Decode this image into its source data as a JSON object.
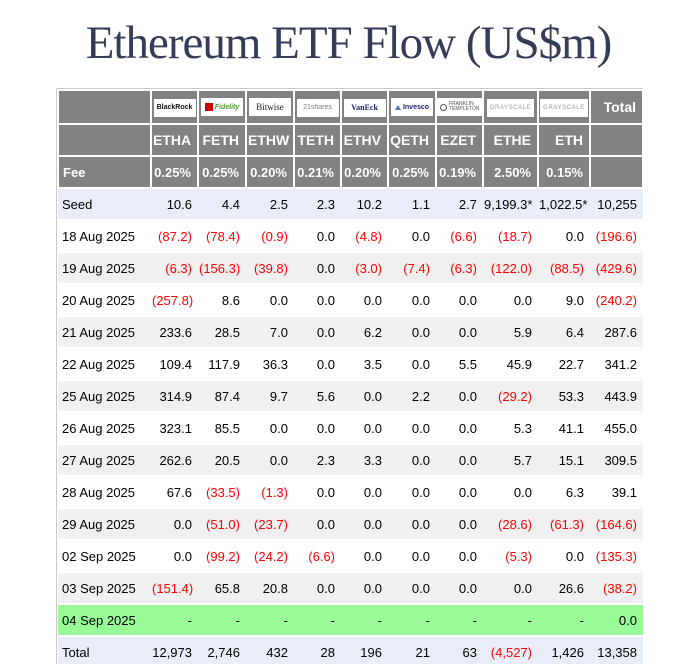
{
  "title": "Ethereum ETF Flow (US$m)",
  "colors": {
    "title_text": "#343c58",
    "header_bg": "#828282",
    "header_text": "#ffffff",
    "seed_bg": "#e8edf8",
    "total_bg": "#e8edf8",
    "alt_bg": "#f0f0f0",
    "highlight_bg": "#98fb98",
    "negative": "#ff0000"
  },
  "table": {
    "fee_label": "Fee",
    "total_header": "Total",
    "columns": [
      {
        "provider": "BlackRock",
        "logo_text": "BlackRock",
        "logo_style": "blackrock",
        "icon": null,
        "ticker": "ETHA",
        "fee": "0.25%"
      },
      {
        "provider": "Fidelity",
        "logo_text": "Fidelity",
        "logo_style": "fidelity",
        "icon": "fidelity-square-icon",
        "ticker": "FETH",
        "fee": "0.25%"
      },
      {
        "provider": "Bitwise",
        "logo_text": "Bitwise",
        "logo_style": "bitwise",
        "icon": null,
        "ticker": "ETHW",
        "fee": "0.20%"
      },
      {
        "provider": "21shares",
        "logo_text": "21shares",
        "logo_style": "shares21",
        "icon": null,
        "ticker": "TETH",
        "fee": "0.21%"
      },
      {
        "provider": "VanEck",
        "logo_text": "VanEck",
        "logo_style": "vaneck",
        "icon": null,
        "ticker": "ETHV",
        "fee": "0.20%"
      },
      {
        "provider": "Invesco",
        "logo_text": "Invesco",
        "logo_style": "invesco",
        "icon": "invesco-triangle-icon",
        "ticker": "QETH",
        "fee": "0.25%"
      },
      {
        "provider": "Franklin Templeton",
        "logo_text": "FRANKLIN\nTEMPLETON",
        "logo_style": "franklin",
        "icon": "franklin-circle-icon",
        "ticker": "EZET",
        "fee": "0.19%"
      },
      {
        "provider": "Grayscale",
        "logo_text": "GRAYSCALE",
        "logo_style": "grayscale",
        "icon": null,
        "ticker": "ETHE",
        "fee": "2.50%"
      },
      {
        "provider": "Grayscale",
        "logo_text": "GRAYSCALE",
        "logo_style": "grayscale",
        "icon": null,
        "ticker": "ETH",
        "fee": "0.15%"
      }
    ],
    "rows": [
      {
        "label": "Seed",
        "values": [
          "10.6",
          "4.4",
          "2.5",
          "2.3",
          "10.2",
          "1.1",
          "2.7",
          "9,199.3*",
          "1,022.5*",
          "10,255"
        ]
      },
      {
        "label": "18 Aug 2025",
        "values": [
          "(87.2)",
          "(78.4)",
          "(0.9)",
          "0.0",
          "(4.8)",
          "0.0",
          "(6.6)",
          "(18.7)",
          "0.0",
          "(196.6)"
        ]
      },
      {
        "label": "19 Aug 2025",
        "values": [
          "(6.3)",
          "(156.3)",
          "(39.8)",
          "0.0",
          "(3.0)",
          "(7.4)",
          "(6.3)",
          "(122.0)",
          "(88.5)",
          "(429.6)"
        ]
      },
      {
        "label": "20 Aug 2025",
        "values": [
          "(257.8)",
          "8.6",
          "0.0",
          "0.0",
          "0.0",
          "0.0",
          "0.0",
          "0.0",
          "9.0",
          "(240.2)"
        ]
      },
      {
        "label": "21 Aug 2025",
        "values": [
          "233.6",
          "28.5",
          "7.0",
          "0.0",
          "6.2",
          "0.0",
          "0.0",
          "5.9",
          "6.4",
          "287.6"
        ]
      },
      {
        "label": "22 Aug 2025",
        "values": [
          "109.4",
          "117.9",
          "36.3",
          "0.0",
          "3.5",
          "0.0",
          "5.5",
          "45.9",
          "22.7",
          "341.2"
        ]
      },
      {
        "label": "25 Aug 2025",
        "values": [
          "314.9",
          "87.4",
          "9.7",
          "5.6",
          "0.0",
          "2.2",
          "0.0",
          "(29.2)",
          "53.3",
          "443.9"
        ]
      },
      {
        "label": "26 Aug 2025",
        "values": [
          "323.1",
          "85.5",
          "0.0",
          "0.0",
          "0.0",
          "0.0",
          "0.0",
          "5.3",
          "41.1",
          "455.0"
        ]
      },
      {
        "label": "27 Aug 2025",
        "values": [
          "262.6",
          "20.5",
          "0.0",
          "2.3",
          "3.3",
          "0.0",
          "0.0",
          "5.7",
          "15.1",
          "309.5"
        ]
      },
      {
        "label": "28 Aug 2025",
        "values": [
          "67.6",
          "(33.5)",
          "(1.3)",
          "0.0",
          "0.0",
          "0.0",
          "0.0",
          "0.0",
          "6.3",
          "39.1"
        ]
      },
      {
        "label": "29 Aug 2025",
        "values": [
          "0.0",
          "(51.0)",
          "(23.7)",
          "0.0",
          "0.0",
          "0.0",
          "0.0",
          "(28.6)",
          "(61.3)",
          "(164.6)"
        ]
      },
      {
        "label": "02 Sep 2025",
        "values": [
          "0.0",
          "(99.2)",
          "(24.2)",
          "(6.6)",
          "0.0",
          "0.0",
          "0.0",
          "(5.3)",
          "0.0",
          "(135.3)"
        ]
      },
      {
        "label": "03 Sep 2025",
        "values": [
          "(151.4)",
          "65.8",
          "20.8",
          "0.0",
          "0.0",
          "0.0",
          "0.0",
          "0.0",
          "26.6",
          "(38.2)"
        ]
      },
      {
        "label": "04 Sep 2025",
        "values": [
          "-",
          "-",
          "-",
          "-",
          "-",
          "-",
          "-",
          "-",
          "-",
          "0.0"
        ],
        "highlight": true
      },
      {
        "label": "Total",
        "values": [
          "12,973",
          "2,746",
          "432",
          "28",
          "196",
          "21",
          "63",
          "(4,527)",
          "1,426",
          "13,358"
        ]
      }
    ]
  }
}
